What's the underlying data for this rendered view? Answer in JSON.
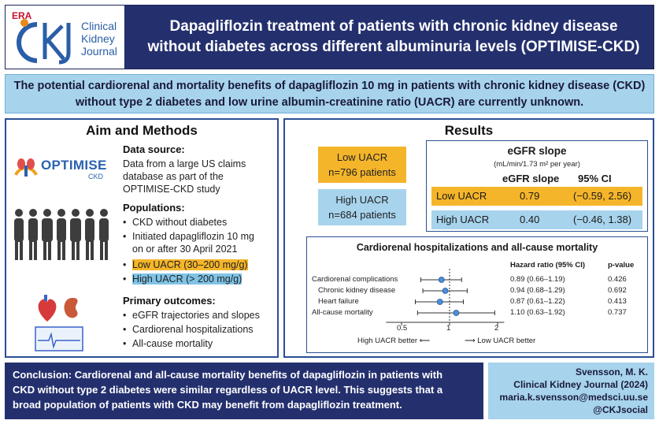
{
  "header": {
    "era": "ERA",
    "logo_line1": "Clinical",
    "logo_line2": "Kidney",
    "logo_line3": "Journal",
    "title_line1": "Dapagliflozin treatment of patients with chronic kidney disease",
    "title_line2": "without diabetes across different albuminuria levels (OPTIMISE-CKD)"
  },
  "intro": {
    "line1": "The potential cardiorenal and mortality benefits of dapagliflozin 10 mg in patients with chronic kidney disease (CKD)",
    "line2": "without type 2 diabetes and low urine albumin-creatinine ratio (UACR) are currently unknown."
  },
  "aim": {
    "title": "Aim and Methods",
    "optimise_logo": "OPTIMISE",
    "optimise_sub": "CKD",
    "data_source_label": "Data source:",
    "data_source_lines": [
      "Data from a large US claims",
      "database as part of the",
      "OPTIMISE-CKD study"
    ],
    "populations_label": "Populations:",
    "populations": {
      "p1": "CKD without diabetes",
      "p2a": "Initiated dapagliflozin 10 mg",
      "p2b": "on or after 30 April 2021",
      "p3": "Low UACR (30–200 mg/g)",
      "p4": "High UACR (> 200 mg/g)"
    },
    "outcomes_label": "Primary outcomes:",
    "outcomes": [
      "eGFR trajectories and slopes",
      "Cardiorenal hospitalizations",
      "All-cause mortality"
    ]
  },
  "results": {
    "title": "Results",
    "low_group": {
      "name": "Low UACR",
      "n": "n=796 patients"
    },
    "high_group": {
      "name": "High UACR",
      "n": "n=684 patients"
    },
    "egfr": {
      "title": "eGFR slope",
      "unit": "(mL/min/1.73 m² per year)",
      "col_slope": "eGFR slope",
      "col_ci": "95% CI",
      "rows": [
        {
          "name": "Low UACR",
          "slope": "0.79",
          "ci": "(−0.59, 2.56)"
        },
        {
          "name": "High UACR",
          "slope": "0.40",
          "ci": "(−0.46, 1.38)"
        }
      ]
    },
    "forest": {
      "title": "Cardiorenal hospitalizations and all-cause mortality",
      "col_hr": "Hazard ratio (95% CI)",
      "col_p": "p-value",
      "tick_labels": [
        "0.5",
        "1",
        "2"
      ],
      "left_label": "High UACR better ⟵",
      "right_label": "⟶ Low UACR better",
      "rows": [
        {
          "label": "Cardiorenal complications",
          "hr_text": "0.89 (0.66–1.19)",
          "p": "0.426"
        },
        {
          "label": "Chronic kidney disease",
          "hr_text": "0.94 (0.68–1.29)",
          "p": "0.692"
        },
        {
          "label": "Heart failure",
          "hr_text": "0.87 (0.61–1.22)",
          "p": "0.413"
        },
        {
          "label": "All-cause mortality",
          "hr_text": "1.10 (0.63–1.92)",
          "p": "0.737"
        }
      ]
    }
  },
  "chart_data": {
    "type": "scatter",
    "title": "Cardiorenal hospitalizations and all-cause mortality",
    "categories": [
      "Cardiorenal complications",
      "Chronic kidney disease",
      "Heart failure",
      "All-cause mortality"
    ],
    "hr": [
      0.89,
      0.94,
      0.87,
      1.1
    ],
    "ci_low": [
      0.66,
      0.68,
      0.61,
      0.63
    ],
    "ci_high": [
      1.19,
      1.29,
      1.22,
      1.92
    ],
    "xscale": "log",
    "xlim": [
      0.4,
      2.2
    ],
    "xticks": [
      0.5,
      1,
      2
    ],
    "reference_line": 1,
    "point_color": "#4a90d9"
  },
  "footer": {
    "conclusion_line1": "Conclusion: Cardiorenal and all-cause mortality benefits of dapagliflozin in patients with",
    "conclusion_line2": "CKD without type 2 diabetes were similar regardless of UACR level. This suggests that a",
    "conclusion_line3": "broad population of patients with CKD may benefit from dapagliflozin treatment.",
    "author": "Svensson, M. K.",
    "journal": "Clinical Kidney Journal (2024)",
    "email": "maria.k.svensson@medsci.uu.se",
    "social": "@CKJsocial"
  },
  "colors": {
    "navy": "#24306e",
    "light_blue": "#a7d3ec",
    "orange": "#f5b52a"
  }
}
